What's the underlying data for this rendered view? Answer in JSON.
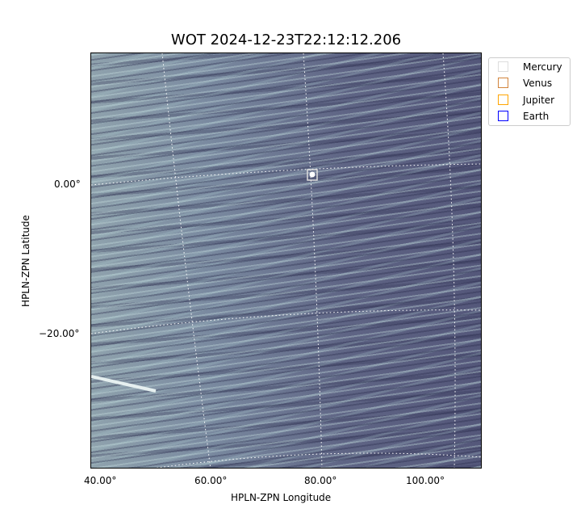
{
  "chart_data": {
    "type": "image",
    "title": "WOT 2024-12-23T22:12:12.206",
    "xlabel": "HPLN-ZPN Longitude",
    "ylabel": "HPLN-ZPN Latitude",
    "x_ticks": [
      "40.00°",
      "60.00°",
      "80.00°",
      "100.00°"
    ],
    "y_ticks": [
      "0.00°",
      "−20.00°"
    ],
    "grid": true,
    "colormap": "bone",
    "legend": {
      "placement": "outside-top-right",
      "entries": [
        {
          "name": "Mercury",
          "color": "#dddddd"
        },
        {
          "name": "Venus",
          "color": "#d2843c"
        },
        {
          "name": "Jupiter",
          "color": "#ffa500"
        },
        {
          "name": "Earth",
          "color": "#0000ff"
        }
      ]
    },
    "markers": [
      {
        "name": "Mercury",
        "lon": 78,
        "lat": 1.5
      }
    ]
  }
}
